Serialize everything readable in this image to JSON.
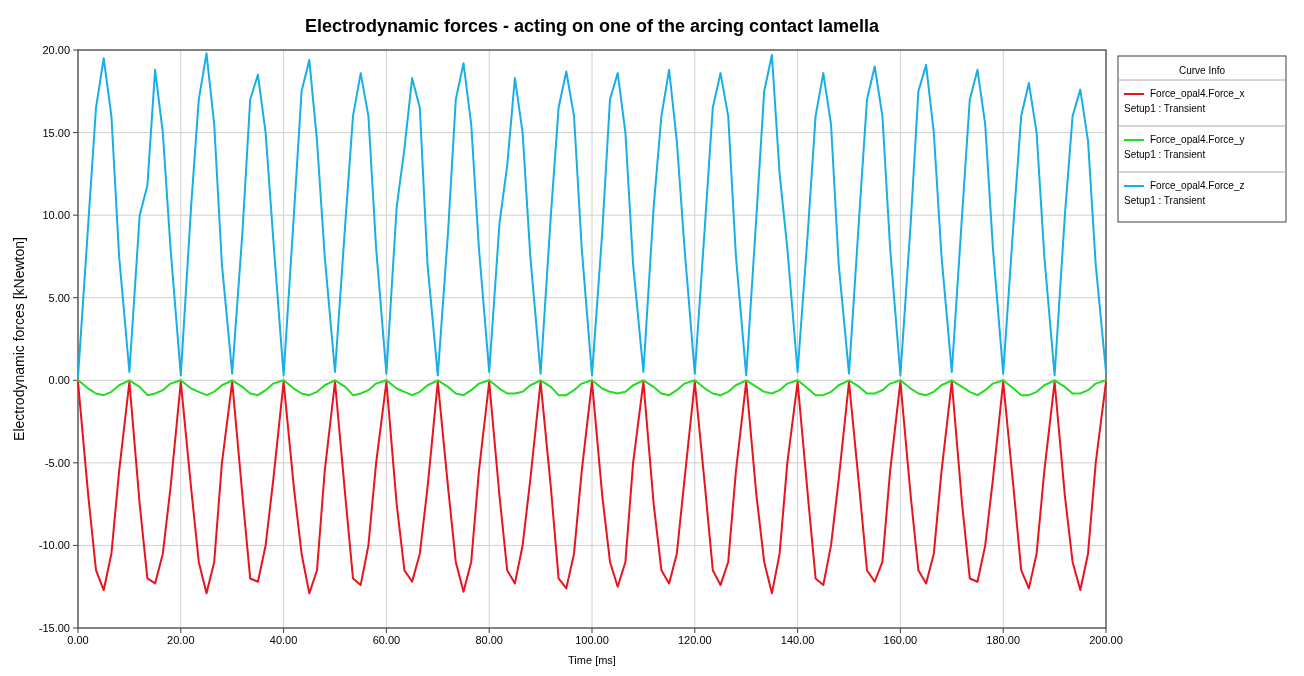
{
  "chart_data": {
    "type": "line",
    "title": "Electrodynamic forces - acting on one of the arcing contact lamella",
    "xlabel": "Time [ms]",
    "ylabel": "Electrodynamic forces [kNewton]",
    "legend_title": "Curve Info",
    "legend": "top right",
    "grid": true,
    "line_style": "solid",
    "xlim": [
      0,
      200
    ],
    "ylim": [
      -15,
      20
    ],
    "xticks": [
      {
        "value": 0,
        "label": "0.00"
      },
      {
        "value": 20,
        "label": "20.00"
      },
      {
        "value": 40,
        "label": "40.00"
      },
      {
        "value": 60,
        "label": "60.00"
      },
      {
        "value": 80,
        "label": "80.00"
      },
      {
        "value": 100,
        "label": "100.00"
      },
      {
        "value": 120,
        "label": "120.00"
      },
      {
        "value": 140,
        "label": "140.00"
      },
      {
        "value": 160,
        "label": "160.00"
      },
      {
        "value": 180,
        "label": "180.00"
      },
      {
        "value": 200,
        "label": "200.00"
      }
    ],
    "yticks": [
      {
        "value": -15,
        "label": "-15.00"
      },
      {
        "value": -10,
        "label": "-10.00"
      },
      {
        "value": -5,
        "label": "-5.00"
      },
      {
        "value": 0,
        "label": "0.00"
      },
      {
        "value": 5,
        "label": "5.00"
      },
      {
        "value": 10,
        "label": "10.00"
      },
      {
        "value": 15,
        "label": "15.00"
      },
      {
        "value": 20,
        "label": "20.00"
      }
    ],
    "x": [
      0,
      2,
      3.5,
      5,
      6.5,
      8,
      10,
      12,
      13.5,
      15,
      16.5,
      18,
      20,
      22,
      23.5,
      25,
      26.5,
      28,
      30,
      32,
      33.5,
      35,
      36.5,
      38,
      40,
      42,
      43.5,
      45,
      46.5,
      48,
      50,
      52,
      53.5,
      55,
      56.5,
      58,
      60,
      62,
      63.5,
      65,
      66.5,
      68,
      70,
      72,
      73.5,
      75,
      76.5,
      78,
      80,
      82,
      83.5,
      85,
      86.5,
      88,
      90,
      92,
      93.5,
      95,
      96.5,
      98,
      100,
      102,
      103.5,
      105,
      106.5,
      108,
      110,
      112,
      113.5,
      115,
      116.5,
      118,
      120,
      122,
      123.5,
      125,
      126.5,
      128,
      130,
      132,
      133.5,
      135,
      136.5,
      138,
      140,
      142,
      143.5,
      145,
      146.5,
      148,
      150,
      152,
      153.5,
      155,
      156.5,
      158,
      160,
      162,
      163.5,
      165,
      166.5,
      168,
      170,
      172,
      173.5,
      175,
      176.5,
      178,
      180,
      182,
      183.5,
      185,
      186.5,
      188,
      190,
      192,
      193.5,
      195,
      196.5,
      198,
      200
    ],
    "series": [
      {
        "name": "Force_opal4.Force_x\nSetup1 : Transient",
        "color": "#e8141e",
        "values": [
          -0.1,
          -7.0,
          -11.5,
          -12.7,
          -10.5,
          -5.5,
          -0.1,
          -7.5,
          -12.0,
          -12.3,
          -10.5,
          -6.5,
          -0.1,
          -6.5,
          -11.0,
          -12.9,
          -11.0,
          -5.0,
          -0.1,
          -7.0,
          -12.0,
          -12.2,
          -10.0,
          -6.0,
          -0.1,
          -6.5,
          -10.5,
          -12.9,
          -11.5,
          -5.5,
          -0.1,
          -7.0,
          -12.0,
          -12.4,
          -10.0,
          -5.0,
          -0.1,
          -7.5,
          -11.5,
          -12.2,
          -10.5,
          -6.5,
          -0.1,
          -6.5,
          -11.0,
          -12.8,
          -11.0,
          -5.5,
          -0.1,
          -7.0,
          -11.5,
          -12.3,
          -10.0,
          -6.0,
          -0.1,
          -6.5,
          -12.0,
          -12.6,
          -10.5,
          -5.5,
          -0.1,
          -7.0,
          -11.0,
          -12.5,
          -11.0,
          -5.0,
          -0.1,
          -7.5,
          -11.5,
          -12.3,
          -10.5,
          -6.0,
          -0.1,
          -6.5,
          -11.5,
          -12.4,
          -11.0,
          -5.5,
          -0.1,
          -7.0,
          -11.0,
          -12.9,
          -10.5,
          -5.0,
          -0.1,
          -7.0,
          -12.0,
          -12.4,
          -10.0,
          -6.0,
          -0.1,
          -6.5,
          -11.5,
          -12.2,
          -11.0,
          -5.5,
          -0.1,
          -7.0,
          -11.5,
          -12.3,
          -10.5,
          -5.5,
          -0.1,
          -7.5,
          -12.0,
          -12.2,
          -10.0,
          -6.0,
          -0.1,
          -6.5,
          -11.5,
          -12.6,
          -10.5,
          -5.5,
          -0.1,
          -7.0,
          -11.0,
          -12.7,
          -10.5,
          -5.0,
          -0.1
        ]
      },
      {
        "name": "Force_opal4.Force_y\nSetup1 : Transient",
        "color": "#22dd22",
        "values": [
          0.0,
          -0.5,
          -0.8,
          -0.9,
          -0.7,
          -0.3,
          0.0,
          -0.4,
          -0.9,
          -0.8,
          -0.6,
          -0.2,
          0.0,
          -0.5,
          -0.7,
          -0.9,
          -0.7,
          -0.3,
          0.0,
          -0.4,
          -0.8,
          -0.9,
          -0.6,
          -0.2,
          0.0,
          -0.5,
          -0.8,
          -0.9,
          -0.7,
          -0.3,
          0.0,
          -0.4,
          -0.9,
          -0.8,
          -0.6,
          -0.2,
          0.0,
          -0.5,
          -0.7,
          -0.9,
          -0.7,
          -0.3,
          0.0,
          -0.4,
          -0.8,
          -0.9,
          -0.6,
          -0.2,
          0.0,
          -0.5,
          -0.8,
          -0.8,
          -0.7,
          -0.3,
          0.0,
          -0.4,
          -0.9,
          -0.9,
          -0.6,
          -0.2,
          0.0,
          -0.5,
          -0.7,
          -0.8,
          -0.7,
          -0.3,
          0.0,
          -0.4,
          -0.8,
          -0.9,
          -0.6,
          -0.2,
          0.0,
          -0.5,
          -0.8,
          -0.9,
          -0.7,
          -0.3,
          0.0,
          -0.4,
          -0.7,
          -0.8,
          -0.6,
          -0.2,
          0.0,
          -0.5,
          -0.9,
          -0.9,
          -0.7,
          -0.3,
          0.0,
          -0.4,
          -0.8,
          -0.8,
          -0.6,
          -0.2,
          0.0,
          -0.5,
          -0.8,
          -0.9,
          -0.7,
          -0.3,
          0.0,
          -0.4,
          -0.7,
          -0.9,
          -0.6,
          -0.2,
          0.0,
          -0.5,
          -0.9,
          -0.9,
          -0.7,
          -0.3,
          0.0,
          -0.4,
          -0.8,
          -0.8,
          -0.6,
          -0.2,
          0.0
        ]
      },
      {
        "name": "Force_opal4.Force_z\nSetup1 : Transient",
        "color": "#18aee8",
        "values": [
          0.2,
          9.5,
          16.5,
          19.5,
          16.0,
          7.5,
          0.5,
          10.0,
          11.8,
          18.8,
          15.0,
          8.0,
          0.3,
          10.5,
          17.0,
          19.8,
          15.5,
          7.0,
          0.4,
          9.0,
          17.0,
          18.5,
          15.0,
          8.5,
          0.3,
          10.0,
          17.5,
          19.4,
          14.5,
          7.5,
          0.5,
          9.5,
          16.0,
          18.6,
          16.0,
          8.0,
          0.4,
          10.5,
          14.0,
          18.3,
          16.5,
          7.0,
          0.3,
          9.0,
          17.0,
          19.2,
          15.5,
          8.0,
          0.5,
          9.5,
          13.0,
          18.3,
          15.0,
          7.5,
          0.4,
          10.0,
          16.5,
          18.7,
          16.0,
          8.0,
          0.3,
          9.0,
          17.0,
          18.6,
          15.0,
          7.0,
          0.5,
          10.5,
          16.0,
          18.8,
          14.5,
          8.0,
          0.4,
          9.5,
          16.5,
          18.6,
          16.0,
          7.5,
          0.3,
          10.0,
          17.5,
          19.7,
          12.5,
          8.0,
          0.5,
          9.0,
          16.0,
          18.6,
          15.5,
          7.0,
          0.4,
          10.0,
          17.0,
          19.0,
          16.0,
          8.0,
          0.3,
          9.5,
          17.5,
          19.1,
          15.0,
          7.5,
          0.5,
          10.0,
          17.0,
          18.8,
          15.5,
          8.0,
          0.4,
          9.5,
          16.0,
          18.0,
          15.0,
          7.5,
          0.3,
          10.0,
          16.0,
          17.6,
          14.5,
          7.0,
          0.5
        ]
      }
    ]
  }
}
